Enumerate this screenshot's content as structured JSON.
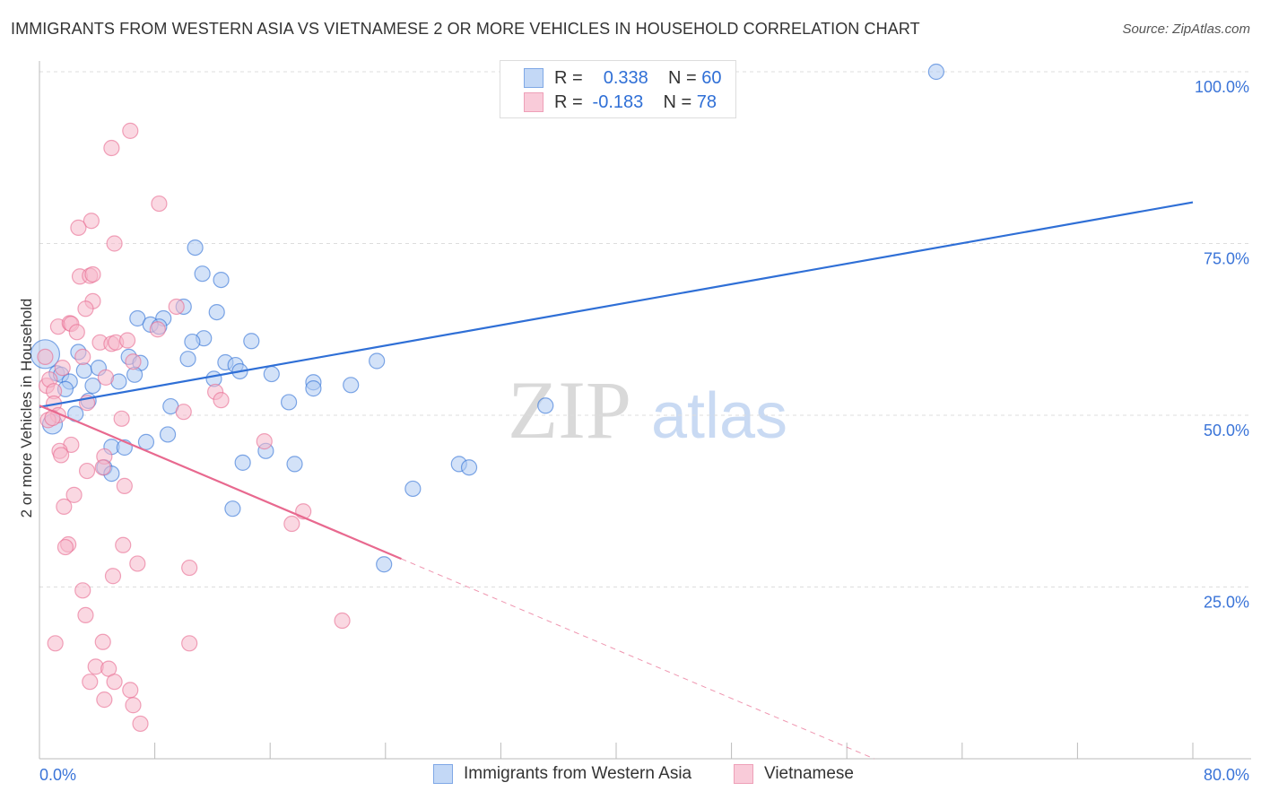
{
  "title": "IMMIGRANTS FROM WESTERN ASIA VS VIETNAMESE 2 OR MORE VEHICLES IN HOUSEHOLD CORRELATION CHART",
  "source": "Source: ZipAtlas.com",
  "watermark": "ZIPatlas",
  "colors": {
    "blue": "#2f6fd6",
    "blue_fill": "#aecbf3",
    "pink": "#e8698f",
    "pink_fill": "#f6b8cb",
    "grid": "#dddddd",
    "tick_label": "#3a74d8"
  },
  "legend": {
    "rows": [
      {
        "r_label": "R =",
        "r_value": "0.338",
        "n_label": "N =",
        "n_value": "60"
      },
      {
        "r_label": "R =",
        "r_value": "-0.183",
        "n_label": "N =",
        "n_value": "78"
      }
    ]
  },
  "chart_data": {
    "type": "scatter",
    "title": "IMMIGRANTS FROM WESTERN ASIA VS VIETNAMESE 2 OR MORE VEHICLES IN HOUSEHOLD CORRELATION CHART",
    "xlabel": "",
    "ylabel": "2 or more Vehicles in Household",
    "xlim": [
      0,
      80
    ],
    "ylim": [
      0,
      100
    ],
    "x_tick_labels": [
      "0.0%",
      "80.0%"
    ],
    "x_ticks": [
      0,
      8,
      16,
      24,
      32,
      40,
      48,
      56,
      64,
      72,
      80
    ],
    "y_ticks": [
      25,
      50,
      75,
      100
    ],
    "y_tick_labels": [
      "25.0%",
      "50.0%",
      "75.0%",
      "100.0%"
    ],
    "grid": true,
    "legend_position": "top-center",
    "series": [
      {
        "name": "Immigrants from Western Asia",
        "color": "#2f6fd6",
        "trend": [
          [
            0,
            51.2
          ],
          [
            80,
            81.0
          ]
        ],
        "points": [
          [
            62.2,
            100
          ],
          [
            42.3,
            100
          ],
          [
            10.8,
            74.4
          ],
          [
            11.3,
            70.6
          ],
          [
            12.6,
            69.7
          ],
          [
            10.0,
            65.8
          ],
          [
            6.8,
            64.1
          ],
          [
            8.6,
            64.1
          ],
          [
            12.3,
            65.0
          ],
          [
            7.7,
            63.2
          ],
          [
            8.3,
            62.9
          ],
          [
            11.4,
            61.2
          ],
          [
            10.6,
            60.7
          ],
          [
            14.7,
            60.8
          ],
          [
            2.7,
            59.2
          ],
          [
            10.3,
            58.2
          ],
          [
            6.2,
            58.5
          ],
          [
            7.0,
            57.6
          ],
          [
            12.9,
            57.7
          ],
          [
            13.6,
            57.3
          ],
          [
            13.9,
            56.4
          ],
          [
            23.4,
            57.9
          ],
          [
            16.1,
            56.0
          ],
          [
            12.1,
            55.3
          ],
          [
            6.6,
            55.9
          ],
          [
            3.1,
            56.5
          ],
          [
            4.1,
            56.9
          ],
          [
            0.4,
            58.9,
            "big"
          ],
          [
            1.2,
            56.1
          ],
          [
            1.5,
            55.9
          ],
          [
            2.1,
            54.9
          ],
          [
            5.5,
            54.9
          ],
          [
            3.7,
            54.3
          ],
          [
            1.8,
            53.8
          ],
          [
            19.0,
            54.8
          ],
          [
            19.0,
            53.9
          ],
          [
            21.6,
            54.4
          ],
          [
            17.3,
            51.9
          ],
          [
            9.1,
            51.3
          ],
          [
            3.4,
            52.1
          ],
          [
            2.5,
            50.2
          ],
          [
            35.1,
            51.4
          ],
          [
            0.9,
            48.7,
            "big"
          ],
          [
            8.9,
            47.2
          ],
          [
            7.4,
            46.1
          ],
          [
            5.0,
            45.4
          ],
          [
            5.9,
            45.3
          ],
          [
            14.1,
            43.1
          ],
          [
            15.7,
            44.8
          ],
          [
            17.7,
            42.9
          ],
          [
            29.1,
            42.9
          ],
          [
            29.8,
            42.4
          ],
          [
            4.5,
            42.4
          ],
          [
            5.0,
            41.5
          ],
          [
            25.9,
            39.3
          ],
          [
            13.4,
            36.4
          ],
          [
            23.9,
            28.3
          ]
        ]
      },
      {
        "name": "Vietnamese",
        "color": "#e8698f",
        "trend": [
          [
            0,
            51.4
          ],
          [
            25.1,
            29.1
          ]
        ],
        "trend_dashed": [
          [
            25.1,
            29.1
          ],
          [
            57.9,
            0
          ]
        ],
        "points": [
          [
            6.3,
            91.4
          ],
          [
            5.0,
            88.9
          ],
          [
            8.3,
            80.8
          ],
          [
            3.6,
            78.3
          ],
          [
            2.7,
            77.3
          ],
          [
            5.2,
            75.0
          ],
          [
            2.8,
            70.2
          ],
          [
            3.5,
            70.3
          ],
          [
            3.7,
            70.5
          ],
          [
            3.7,
            66.6
          ],
          [
            3.2,
            65.5
          ],
          [
            9.5,
            65.8
          ],
          [
            1.3,
            62.9
          ],
          [
            2.1,
            63.4
          ],
          [
            2.2,
            63.3
          ],
          [
            2.6,
            62.1
          ],
          [
            8.2,
            62.5
          ],
          [
            4.2,
            60.6
          ],
          [
            5.0,
            60.4
          ],
          [
            5.3,
            60.6
          ],
          [
            6.1,
            60.9
          ],
          [
            3.0,
            58.5
          ],
          [
            0.4,
            58.5
          ],
          [
            6.5,
            57.8
          ],
          [
            1.6,
            56.9
          ],
          [
            4.6,
            55.5
          ],
          [
            0.5,
            54.3
          ],
          [
            0.7,
            55.2
          ],
          [
            1.0,
            53.5
          ],
          [
            12.2,
            53.4
          ],
          [
            12.6,
            52.2
          ],
          [
            3.3,
            51.8
          ],
          [
            1.0,
            51.7
          ],
          [
            1.3,
            50.0
          ],
          [
            10.0,
            50.5
          ],
          [
            5.7,
            49.5
          ],
          [
            0.6,
            49.3
          ],
          [
            0.9,
            49.6
          ],
          [
            2.2,
            45.7
          ],
          [
            1.4,
            44.8
          ],
          [
            1.5,
            44.2
          ],
          [
            15.6,
            46.2
          ],
          [
            4.5,
            44.0
          ],
          [
            3.3,
            41.9
          ],
          [
            4.4,
            42.4
          ],
          [
            5.9,
            39.7
          ],
          [
            2.4,
            38.4
          ],
          [
            1.7,
            36.7
          ],
          [
            18.3,
            36.0
          ],
          [
            17.5,
            34.2
          ],
          [
            2.0,
            31.2
          ],
          [
            1.8,
            30.8
          ],
          [
            5.8,
            31.1
          ],
          [
            6.8,
            28.4
          ],
          [
            5.1,
            26.6
          ],
          [
            10.4,
            27.8
          ],
          [
            3.0,
            24.5
          ],
          [
            3.2,
            20.9
          ],
          [
            21.0,
            20.1
          ],
          [
            1.1,
            16.8
          ],
          [
            4.4,
            17.0
          ],
          [
            10.4,
            16.8
          ],
          [
            3.9,
            13.4
          ],
          [
            4.8,
            13.1
          ],
          [
            3.5,
            11.2
          ],
          [
            5.2,
            11.2
          ],
          [
            4.5,
            8.6
          ],
          [
            6.3,
            10.0
          ],
          [
            6.5,
            7.8
          ],
          [
            7.0,
            5.1
          ]
        ]
      }
    ]
  }
}
